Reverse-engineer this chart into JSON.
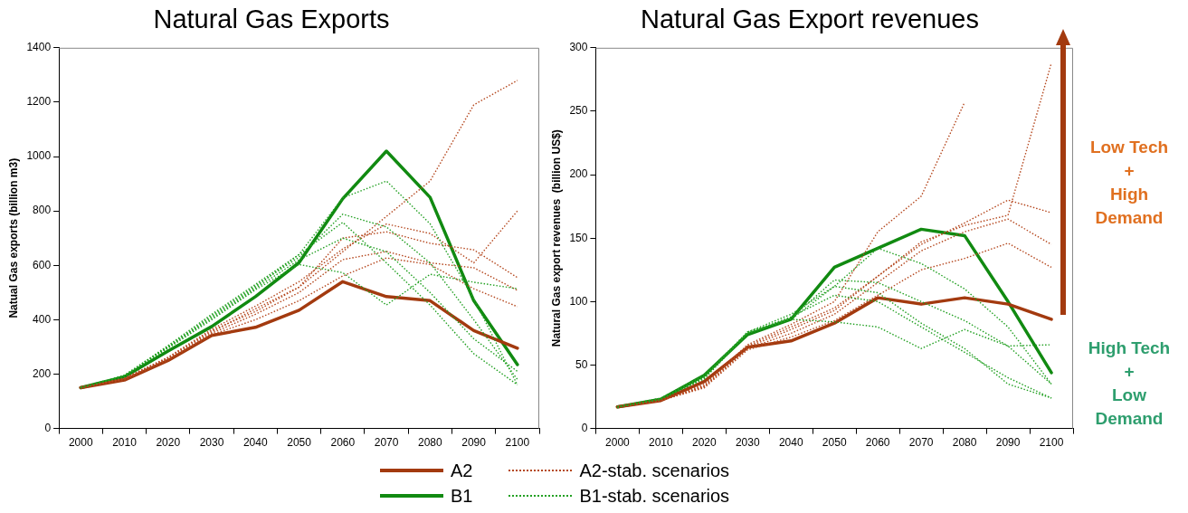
{
  "chart_data": [
    {
      "type": "line",
      "title": "Natural Gas Exports",
      "ylabel": "Natual Gas exports (billion m3)",
      "categories": [
        "2000",
        "2010",
        "2020",
        "2030",
        "2040",
        "2050",
        "2060",
        "2070",
        "2080",
        "2090",
        "2100"
      ],
      "ylim": [
        0,
        1400
      ],
      "yticks": [
        0,
        200,
        400,
        600,
        800,
        1000,
        1200,
        1400
      ],
      "grid": false,
      "legend": "bottom",
      "marker": "none",
      "series": [
        {
          "name": "A2-stab. scenarios",
          "color": "#b5481f",
          "line_style": "dotted",
          "values": [
            150,
            185,
            260,
            360,
            430,
            520,
            650,
            780,
            910,
            1190,
            1280
          ]
        },
        {
          "color": "#b5481f",
          "line_style": "dotted",
          "values": [
            150,
            185,
            262,
            365,
            450,
            540,
            660,
            752,
            717,
            609,
            800
          ]
        },
        {
          "color": "#b5481f",
          "line_style": "dotted",
          "values": [
            150,
            183,
            258,
            355,
            440,
            520,
            700,
            723,
            681,
            657,
            555
          ]
        },
        {
          "color": "#b5481f",
          "line_style": "dotted",
          "values": [
            150,
            182,
            255,
            350,
            420,
            500,
            621,
            651,
            609,
            591,
            508
          ]
        },
        {
          "color": "#b5481f",
          "line_style": "dotted",
          "values": [
            150,
            180,
            252,
            345,
            400,
            470,
            561,
            627,
            603,
            514,
            448
          ]
        },
        {
          "name": "B1-stab. scenarios",
          "color": "#22a022",
          "line_style": "dotted",
          "values": [
            150,
            195,
            300,
            410,
            520,
            640,
            848,
            910,
            753,
            478,
            160
          ]
        },
        {
          "color": "#22a022",
          "line_style": "dotted",
          "values": [
            150,
            195,
            300,
            415,
            525,
            630,
            788,
            741,
            609,
            400,
            180
          ]
        },
        {
          "color": "#22a022",
          "line_style": "dotted",
          "values": [
            150,
            192,
            295,
            400,
            510,
            603,
            573,
            454,
            567,
            538,
            514
          ]
        },
        {
          "color": "#22a022",
          "line_style": "dotted",
          "values": [
            150,
            195,
            305,
            420,
            530,
            640,
            758,
            609,
            454,
            275,
            161
          ]
        },
        {
          "color": "#22a022",
          "line_style": "dotted",
          "values": [
            150,
            193,
            300,
            405,
            515,
            620,
            700,
            650,
            500,
            330,
            210
          ]
        },
        {
          "name": "A2",
          "color": "#a33a0f",
          "line_style": "solid",
          "values": [
            150,
            178,
            250,
            342,
            372,
            435,
            540,
            485,
            470,
            360,
            295
          ]
        },
        {
          "name": "B1",
          "color": "#118a11",
          "line_style": "solid",
          "values": [
            150,
            190,
            285,
            375,
            485,
            610,
            845,
            1020,
            850,
            470,
            235
          ]
        }
      ]
    },
    {
      "type": "line",
      "title": "Natural Gas Export revenues",
      "ylabel": "Natural Gas export revenues  (billion US$)",
      "categories": [
        "2000",
        "2010",
        "2020",
        "2030",
        "2040",
        "2050",
        "2060",
        "2070",
        "2080",
        "2090",
        "2100"
      ],
      "ylim": [
        0,
        300
      ],
      "yticks": [
        0,
        50,
        100,
        150,
        200,
        250,
        300
      ],
      "grid": false,
      "legend": "bottom",
      "marker": "none",
      "annotations": [
        "Low Tech\n+\nHigh Demand",
        "High Tech\n+\nLow Demand"
      ],
      "series": [
        {
          "name": "A2-stab. scenarios",
          "color": "#b5481f",
          "line_style": "dotted",
          "values": [
            17,
            22,
            35,
            66,
            82,
            100,
            155,
            183,
            257,
            null,
            null
          ]
        },
        {
          "color": "#b5481f",
          "line_style": "dotted",
          "values": [
            17,
            22,
            34,
            65,
            80,
            95,
            120,
            147,
            160,
            168,
            288
          ]
        },
        {
          "color": "#b5481f",
          "line_style": "dotted",
          "values": [
            17,
            22,
            33,
            64,
            78,
            93,
            120,
            145,
            162,
            180,
            170
          ]
        },
        {
          "color": "#b5481f",
          "line_style": "dotted",
          "values": [
            17,
            22,
            33,
            63,
            75,
            90,
            115,
            140,
            155,
            165,
            145
          ]
        },
        {
          "color": "#b5481f",
          "line_style": "dotted",
          "values": [
            17,
            22,
            32,
            62,
            72,
            85,
            105,
            125,
            134,
            146,
            127
          ]
        },
        {
          "name": "B1-stab. scenarios",
          "color": "#22a022",
          "line_style": "dotted",
          "values": [
            17,
            23,
            40,
            76,
            87,
            117,
            115,
            100,
            85,
            65,
            66
          ]
        },
        {
          "color": "#22a022",
          "line_style": "dotted",
          "values": [
            17,
            23,
            40,
            76,
            86,
            112,
            107,
            83,
            63,
            35,
            24
          ]
        },
        {
          "color": "#22a022",
          "line_style": "dotted",
          "values": [
            17,
            23,
            39,
            75,
            86,
            84,
            80,
            63,
            78,
            65,
            35
          ]
        },
        {
          "color": "#22a022",
          "line_style": "dotted",
          "values": [
            17,
            24,
            42,
            76,
            90,
            112,
            142,
            130,
            110,
            80,
            35
          ]
        },
        {
          "color": "#22a022",
          "line_style": "dotted",
          "values": [
            17,
            23,
            41,
            75,
            88,
            105,
            100,
            80,
            60,
            40,
            24
          ]
        },
        {
          "name": "A2",
          "color": "#a33a0f",
          "line_style": "solid",
          "values": [
            17,
            22,
            37,
            64,
            69,
            83,
            103,
            98,
            103,
            98,
            86
          ]
        },
        {
          "name": "B1",
          "color": "#118a11",
          "line_style": "solid",
          "values": [
            17,
            23,
            42,
            74,
            86,
            127,
            142,
            157,
            152,
            100,
            44
          ]
        }
      ]
    }
  ]
}
